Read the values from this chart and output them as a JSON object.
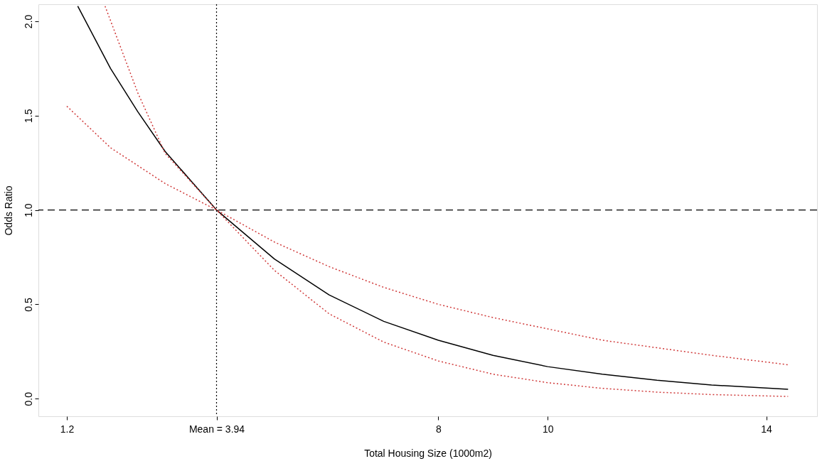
{
  "chart_data": {
    "type": "line",
    "xlabel": "Total Housing Size (1000m2)",
    "ylabel": "Odds Ratio",
    "xlim": [
      0.68,
      14.93
    ],
    "ylim": [
      -0.093,
      2.09
    ],
    "xticks": [
      1.2,
      {
        "value": 3.94,
        "label": "Mean = 3.94"
      },
      8,
      10,
      14
    ],
    "yticks": [
      {
        "value": 0,
        "label": "0.0"
      },
      {
        "value": 0.5,
        "label": "0.5"
      },
      {
        "value": 1,
        "label": "1.0"
      },
      {
        "value": 1.5,
        "label": "1.5"
      },
      {
        "value": 2,
        "label": "2.0"
      }
    ],
    "grid": false,
    "series": [
      {
        "color": "#000000",
        "line_style": "solid",
        "x": [
          1.4,
          2.0,
          2.5,
          3.0,
          3.94,
          5,
          6,
          7,
          8,
          9,
          10,
          11,
          12,
          13,
          14.4
        ],
        "values": [
          2.08,
          1.75,
          1.52,
          1.31,
          1.0,
          0.74,
          0.55,
          0.41,
          0.31,
          0.23,
          0.17,
          0.13,
          0.098,
          0.073,
          0.05
        ]
      },
      {
        "color": "#d03a3a",
        "line_style": "dotted",
        "x": [
          1.2,
          2,
          3,
          3.94,
          5,
          6,
          7,
          8,
          9,
          10,
          11,
          12,
          13,
          14.4
        ],
        "values": [
          1.55,
          1.33,
          1.14,
          1.0,
          0.83,
          0.7,
          0.59,
          0.5,
          0.43,
          0.37,
          0.31,
          0.27,
          0.23,
          0.18
        ]
      },
      {
        "color": "#d03a3a",
        "line_style": "dotted",
        "x": [
          1.9,
          2.5,
          3,
          3.94,
          5,
          6,
          7,
          8,
          9,
          10,
          11,
          12,
          13,
          14.4
        ],
        "values": [
          2.08,
          1.62,
          1.3,
          1.0,
          0.68,
          0.45,
          0.3,
          0.2,
          0.13,
          0.085,
          0.055,
          0.035,
          0.022,
          0.012
        ]
      }
    ],
    "ref_lines": [
      {
        "axis": "y",
        "value": 1,
        "line_style": "dashed",
        "color": "#000000"
      },
      {
        "axis": "x",
        "value": 3.94,
        "line_style": "dotted",
        "color": "#000000"
      }
    ]
  }
}
